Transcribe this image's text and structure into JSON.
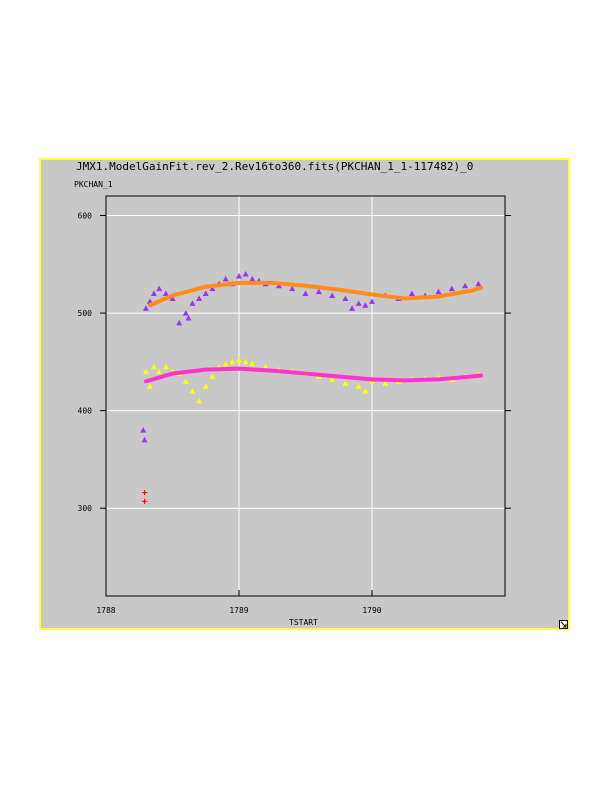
{
  "window": {
    "border_color": "#ffff33",
    "background": "#c8c8c8"
  },
  "chart_data": {
    "type": "scatter",
    "title": "JMX1.ModelGainFit.rev_2.Rev16to360.fits(PKCHAN_1_1-117482)_0",
    "xlabel": "TSTART",
    "ylabel": "PKCHAN_1",
    "xlim": [
      1788,
      1791
    ],
    "ylim": [
      210,
      620
    ],
    "x_ticks": [
      1788,
      1789,
      1790
    ],
    "x_tick_labels": [
      "1788",
      "1789",
      "1790"
    ],
    "y_ticks": [
      300,
      400,
      500,
      600
    ],
    "y_tick_labels": [
      "300",
      "400",
      "500",
      "600"
    ],
    "grid": true,
    "series": [
      {
        "marker": "triangle",
        "color": "#9b30ff",
        "x": [
          1788.28,
          1788.29,
          1788.3,
          1788.33,
          1788.36,
          1788.4,
          1788.45,
          1788.5,
          1788.55,
          1788.6,
          1788.62,
          1788.65,
          1788.7,
          1788.75,
          1788.8,
          1788.85,
          1788.9,
          1788.95,
          1789.0,
          1789.05,
          1789.1,
          1789.15,
          1789.2,
          1789.3,
          1789.4,
          1789.5,
          1789.6,
          1789.7,
          1789.8,
          1789.85,
          1789.9,
          1789.95,
          1790.0,
          1790.1,
          1790.2,
          1790.3,
          1790.4,
          1790.5,
          1790.6,
          1790.7,
          1790.8
        ],
        "y": [
          380,
          370,
          505,
          512,
          520,
          525,
          520,
          515,
          490,
          500,
          495,
          510,
          515,
          520,
          525,
          530,
          535,
          530,
          538,
          540,
          535,
          533,
          530,
          528,
          525,
          520,
          522,
          518,
          515,
          505,
          510,
          508,
          512,
          518,
          515,
          520,
          518,
          522,
          525,
          528,
          530
        ]
      },
      {
        "marker": "triangle",
        "color": "#ffff00",
        "x": [
          1788.3,
          1788.33,
          1788.36,
          1788.4,
          1788.45,
          1788.5,
          1788.55,
          1788.6,
          1788.65,
          1788.7,
          1788.75,
          1788.8,
          1788.85,
          1788.9,
          1788.95,
          1789.0,
          1789.05,
          1789.1,
          1789.2,
          1789.3,
          1789.4,
          1789.5,
          1789.6,
          1789.7,
          1789.8,
          1789.9,
          1789.95,
          1790.0,
          1790.1,
          1790.2,
          1790.3,
          1790.4,
          1790.5,
          1790.6,
          1790.7,
          1790.8
        ],
        "y": [
          440,
          425,
          445,
          440,
          445,
          440,
          438,
          430,
          420,
          410,
          425,
          435,
          445,
          448,
          450,
          452,
          450,
          448,
          445,
          442,
          440,
          438,
          435,
          432,
          428,
          425,
          420,
          430,
          428,
          430,
          432,
          433,
          434,
          432,
          435,
          437
        ]
      },
      {
        "marker": "plus",
        "color": "#ff0000",
        "x": [
          1788.29,
          1788.29
        ],
        "y": [
          316,
          307
        ]
      },
      {
        "marker": "line",
        "color": "#ff8c1a",
        "x": [
          1788.33,
          1788.5,
          1788.75,
          1789.0,
          1789.25,
          1789.5,
          1789.75,
          1790.0,
          1790.25,
          1790.5,
          1790.75,
          1790.82
        ],
        "y": [
          508,
          518,
          527,
          531,
          531,
          528,
          524,
          519,
          515,
          517,
          523,
          526
        ]
      },
      {
        "marker": "line",
        "color": "#ff33cc",
        "x": [
          1788.3,
          1788.5,
          1788.75,
          1789.0,
          1789.25,
          1789.5,
          1789.75,
          1790.0,
          1790.25,
          1790.5,
          1790.75,
          1790.82
        ],
        "y": [
          430,
          438,
          442,
          443,
          441,
          438,
          435,
          432,
          431,
          432,
          435,
          436
        ]
      }
    ]
  }
}
